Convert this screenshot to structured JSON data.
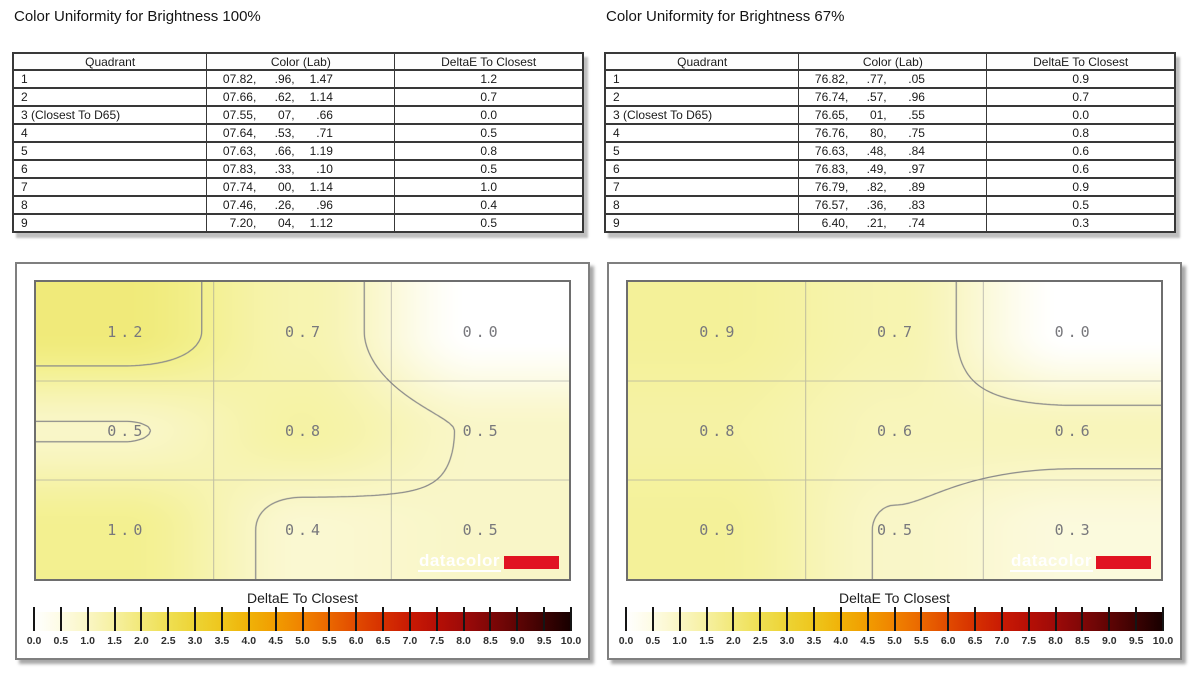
{
  "brand": {
    "logo_text": "datacolor",
    "logo_red": "#e11322"
  },
  "panels": [
    {
      "title": "Color Uniformity for Brightness 100%",
      "table": {
        "headers": [
          "Quadrant",
          "Color (Lab)",
          "DeltaE To Closest"
        ],
        "rows": [
          {
            "quadrant": "1",
            "lab": [
              "07.82,",
              ".96,",
              "1.47"
            ],
            "delta": "1.2"
          },
          {
            "quadrant": "2",
            "lab": [
              "07.66,",
              ".62,",
              "1.14"
            ],
            "delta": "0.7"
          },
          {
            "quadrant": "3 (Closest To D65)",
            "lab": [
              "07.55,",
              "07,",
              ".66"
            ],
            "delta": "0.0"
          },
          {
            "quadrant": "4",
            "lab": [
              "07.64,",
              ".53,",
              ".71"
            ],
            "delta": "0.5"
          },
          {
            "quadrant": "5",
            "lab": [
              "07.63,",
              ".66,",
              "1.19"
            ],
            "delta": "0.8"
          },
          {
            "quadrant": "6",
            "lab": [
              "07.83,",
              ".33,",
              ".10"
            ],
            "delta": "0.5"
          },
          {
            "quadrant": "7",
            "lab": [
              "07.74,",
              "00,",
              "1.14"
            ],
            "delta": "1.0"
          },
          {
            "quadrant": "8",
            "lab": [
              "07.46,",
              ".26,",
              ".96"
            ],
            "delta": "0.4"
          },
          {
            "quadrant": "9",
            "lab": [
              "7.20,",
              "04,",
              "1.12"
            ],
            "delta": "0.5"
          }
        ]
      },
      "plot": {
        "cell_labels": [
          "1.2",
          "0.7",
          "0.0",
          "0.5",
          "0.8",
          "0.5",
          "1.0",
          "0.4",
          "0.5"
        ],
        "colorbar_title": "DeltaE To Closest",
        "tick_labels": [
          "0.0",
          "0.5",
          "1.0",
          "1.5",
          "2.0",
          "2.5",
          "3.0",
          "3.5",
          "4.0",
          "4.5",
          "5.0",
          "5.5",
          "6.0",
          "6.5",
          "7.0",
          "7.5",
          "8.0",
          "8.5",
          "9.0",
          "9.5",
          "10.0"
        ]
      }
    },
    {
      "title": "Color Uniformity for Brightness 67%",
      "table": {
        "headers": [
          "Quadrant",
          "Color (Lab)",
          "DeltaE To Closest"
        ],
        "rows": [
          {
            "quadrant": "1",
            "lab": [
              "76.82,",
              ".77,",
              ".05"
            ],
            "delta": "0.9"
          },
          {
            "quadrant": "2",
            "lab": [
              "76.74,",
              ".57,",
              ".96"
            ],
            "delta": "0.7"
          },
          {
            "quadrant": "3 (Closest To D65)",
            "lab": [
              "76.65,",
              "01,",
              ".55"
            ],
            "delta": "0.0"
          },
          {
            "quadrant": "4",
            "lab": [
              "76.76,",
              "80,",
              ".75"
            ],
            "delta": "0.8"
          },
          {
            "quadrant": "5",
            "lab": [
              "76.63,",
              ".48,",
              ".84"
            ],
            "delta": "0.6"
          },
          {
            "quadrant": "6",
            "lab": [
              "76.83,",
              ".49,",
              ".97"
            ],
            "delta": "0.6"
          },
          {
            "quadrant": "7",
            "lab": [
              "76.79,",
              ".82,",
              ".89"
            ],
            "delta": "0.9"
          },
          {
            "quadrant": "8",
            "lab": [
              "76.57,",
              ".36,",
              ".83"
            ],
            "delta": "0.5"
          },
          {
            "quadrant": "9",
            "lab": [
              "6.40,",
              ".21,",
              ".74"
            ],
            "delta": "0.3"
          }
        ]
      },
      "plot": {
        "cell_labels": [
          "0.9",
          "0.7",
          "0.0",
          "0.8",
          "0.6",
          "0.6",
          "0.9",
          "0.5",
          "0.3"
        ],
        "colorbar_title": "DeltaE To Closest",
        "tick_labels": [
          "0.0",
          "0.5",
          "1.0",
          "1.5",
          "2.0",
          "2.5",
          "3.0",
          "3.5",
          "4.0",
          "4.5",
          "5.0",
          "5.5",
          "6.0",
          "6.5",
          "7.0",
          "7.5",
          "8.0",
          "8.5",
          "9.0",
          "9.5",
          "10.0"
        ]
      }
    }
  ],
  "chart_data": [
    {
      "type": "heatmap",
      "title": "Color Uniformity for Brightness 100%",
      "grid_rows": 3,
      "grid_cols": 3,
      "values": [
        [
          1.2,
          0.7,
          0.0
        ],
        [
          0.5,
          0.8,
          0.5
        ],
        [
          1.0,
          0.4,
          0.5
        ]
      ],
      "contour_interval": 0.5,
      "contour_line_color": "#8a8a8a",
      "grid_line_color": "rgba(153,153,153,0.55)",
      "field_stops": [
        [
          0,
          "#ffffff"
        ],
        [
          0.5,
          "#f9f6c6"
        ],
        [
          1.0,
          "#f3f08e"
        ],
        [
          1.5,
          "#ebe25c"
        ],
        [
          2.0,
          "#e5d83e"
        ]
      ],
      "colorbar": {
        "label": "DeltaE To Closest",
        "min": 0.0,
        "max": 10.0,
        "tick_step": 0.5,
        "stops": [
          "#ffffff",
          "#fdfbe4",
          "#faf6c4",
          "#f6f0a0",
          "#f2e878",
          "#efdf52",
          "#edd334",
          "#eec61c",
          "#f0b208",
          "#f19c00",
          "#f08200",
          "#ea6700",
          "#e14a00",
          "#d63000",
          "#c91a04",
          "#b60f06",
          "#9d0a08",
          "#7f0707",
          "#5f0404",
          "#3b0202",
          "#170000"
        ]
      }
    },
    {
      "type": "heatmap",
      "title": "Color Uniformity for Brightness 67%",
      "grid_rows": 3,
      "grid_cols": 3,
      "values": [
        [
          0.9,
          0.7,
          0.0
        ],
        [
          0.8,
          0.6,
          0.6
        ],
        [
          0.9,
          0.5,
          0.3
        ]
      ],
      "contour_interval": 0.5,
      "contour_line_color": "#8a8a8a",
      "grid_line_color": "rgba(153,153,153,0.55)",
      "field_stops": [
        [
          0,
          "#ffffff"
        ],
        [
          0.5,
          "#f9f6c6"
        ],
        [
          1.0,
          "#f3f08e"
        ],
        [
          1.5,
          "#ebe25c"
        ],
        [
          2.0,
          "#e5d83e"
        ]
      ],
      "colorbar": {
        "label": "DeltaE To Closest",
        "min": 0.0,
        "max": 10.0,
        "tick_step": 0.5,
        "stops": [
          "#ffffff",
          "#fdfbe4",
          "#faf6c4",
          "#f6f0a0",
          "#f2e878",
          "#efdf52",
          "#edd334",
          "#eec61c",
          "#f0b208",
          "#f19c00",
          "#f08200",
          "#ea6700",
          "#e14a00",
          "#d63000",
          "#c91a04",
          "#b60f06",
          "#9d0a08",
          "#7f0707",
          "#5f0404",
          "#3b0202",
          "#170000"
        ]
      }
    }
  ]
}
